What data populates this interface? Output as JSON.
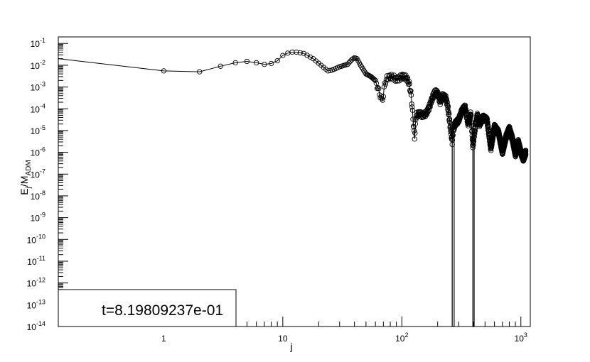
{
  "chart_data": {
    "type": "scatter",
    "xscale": "log",
    "yscale": "log",
    "xlim": [
      0.13,
      1200
    ],
    "ylim": [
      1e-14,
      0.2
    ],
    "grid": false,
    "xlabel": "j",
    "ylabel_main": "E",
    "ylabel_sub1": "j",
    "ylabel_slash": "/M",
    "ylabel_sub2": "ADM",
    "x_ticks": [
      {
        "value": 1,
        "base": "1",
        "exp": ""
      },
      {
        "value": 10,
        "base": "10",
        "exp": ""
      },
      {
        "value": 100,
        "base": "10",
        "exp": "2"
      },
      {
        "value": 1000,
        "base": "10",
        "exp": "3"
      }
    ],
    "y_ticks": [
      {
        "value": 0.1,
        "base": "10",
        "exp": "-1"
      },
      {
        "value": 0.01,
        "base": "10",
        "exp": "-2"
      },
      {
        "value": 0.001,
        "base": "10",
        "exp": "-3"
      },
      {
        "value": 0.0001,
        "base": "10",
        "exp": "-4"
      },
      {
        "value": 1e-05,
        "base": "10",
        "exp": "-5"
      },
      {
        "value": 1e-06,
        "base": "10",
        "exp": "-6"
      },
      {
        "value": 1e-07,
        "base": "10",
        "exp": "-7"
      },
      {
        "value": 1e-08,
        "base": "10",
        "exp": "-8"
      },
      {
        "value": 1e-09,
        "base": "10",
        "exp": "-9"
      },
      {
        "value": 1e-10,
        "base": "10",
        "exp": "-10"
      },
      {
        "value": 1e-11,
        "base": "10",
        "exp": "-11"
      },
      {
        "value": 1e-12,
        "base": "10",
        "exp": "-12"
      },
      {
        "value": 1e-13,
        "base": "10",
        "exp": "-13"
      },
      {
        "value": 1e-14,
        "base": "10",
        "exp": "-14"
      }
    ],
    "annotation": "t=8.19809237e-01",
    "line_start": [
      0.13,
      0.02
    ],
    "drops": [
      {
        "x_from": 265,
        "x_to": 275,
        "y_min": 1e-14
      },
      {
        "x_from": 395,
        "x_to": 405,
        "y_min": 1e-14
      }
    ],
    "anchors": [
      [
        1,
        0.0055
      ],
      [
        2,
        0.005
      ],
      [
        3,
        0.009
      ],
      [
        4,
        0.013
      ],
      [
        5,
        0.015
      ],
      [
        6,
        0.013
      ],
      [
        7,
        0.011
      ],
      [
        8,
        0.012
      ],
      [
        9,
        0.016
      ],
      [
        10,
        0.028
      ],
      [
        11,
        0.036
      ],
      [
        12,
        0.04
      ],
      [
        13,
        0.04
      ],
      [
        15,
        0.035
      ],
      [
        18,
        0.02
      ],
      [
        22,
        0.008
      ],
      [
        24,
        0.0055
      ],
      [
        26,
        0.006
      ],
      [
        30,
        0.0085
      ],
      [
        35,
        0.011
      ],
      [
        38,
        0.018
      ],
      [
        40,
        0.022
      ],
      [
        42,
        0.02
      ],
      [
        45,
        0.01
      ],
      [
        50,
        0.004
      ],
      [
        55,
        0.003
      ],
      [
        60,
        0.002
      ],
      [
        65,
        0.0005
      ],
      [
        68,
        0.00025
      ],
      [
        70,
        0.0004
      ],
      [
        72,
        0.0015
      ],
      [
        75,
        0.0025
      ],
      [
        80,
        0.003
      ],
      [
        85,
        0.0028
      ],
      [
        90,
        0.0022
      ],
      [
        95,
        0.0025
      ],
      [
        100,
        0.003
      ],
      [
        105,
        0.003
      ],
      [
        110,
        0.0025
      ],
      [
        115,
        0.0015
      ],
      [
        120,
        0.0004
      ],
      [
        125,
        2e-05
      ],
      [
        128,
        5e-06
      ],
      [
        132,
        5e-05
      ],
      [
        140,
        6e-05
      ],
      [
        150,
        5e-05
      ],
      [
        160,
        6e-05
      ],
      [
        170,
        0.00012
      ],
      [
        180,
        0.0003
      ],
      [
        190,
        0.0006
      ],
      [
        200,
        0.0005
      ],
      [
        210,
        0.0002
      ],
      [
        220,
        0.0004
      ],
      [
        235,
        0.0003
      ],
      [
        245,
        0.0001
      ],
      [
        255,
        1.5e-05
      ],
      [
        265,
        3e-06
      ],
      [
        270,
        1e-05
      ],
      [
        280,
        2e-05
      ],
      [
        300,
        3e-05
      ],
      [
        320,
        8e-05
      ],
      [
        340,
        0.00012
      ],
      [
        360,
        2e-05
      ],
      [
        380,
        6e-05
      ],
      [
        395,
        2e-06
      ],
      [
        410,
        1e-05
      ],
      [
        430,
        5e-05
      ],
      [
        450,
        2e-05
      ],
      [
        480,
        4e-05
      ],
      [
        520,
        3e-05
      ],
      [
        560,
        1.5e-06
      ],
      [
        600,
        1.5e-05
      ],
      [
        650,
        8e-06
      ],
      [
        700,
        1e-06
      ],
      [
        750,
        5e-06
      ],
      [
        800,
        1.2e-05
      ],
      [
        850,
        4e-06
      ],
      [
        900,
        8e-07
      ],
      [
        950,
        3e-06
      ],
      [
        1000,
        1e-06
      ],
      [
        1050,
        5e-07
      ],
      [
        1100,
        1e-06
      ]
    ]
  }
}
